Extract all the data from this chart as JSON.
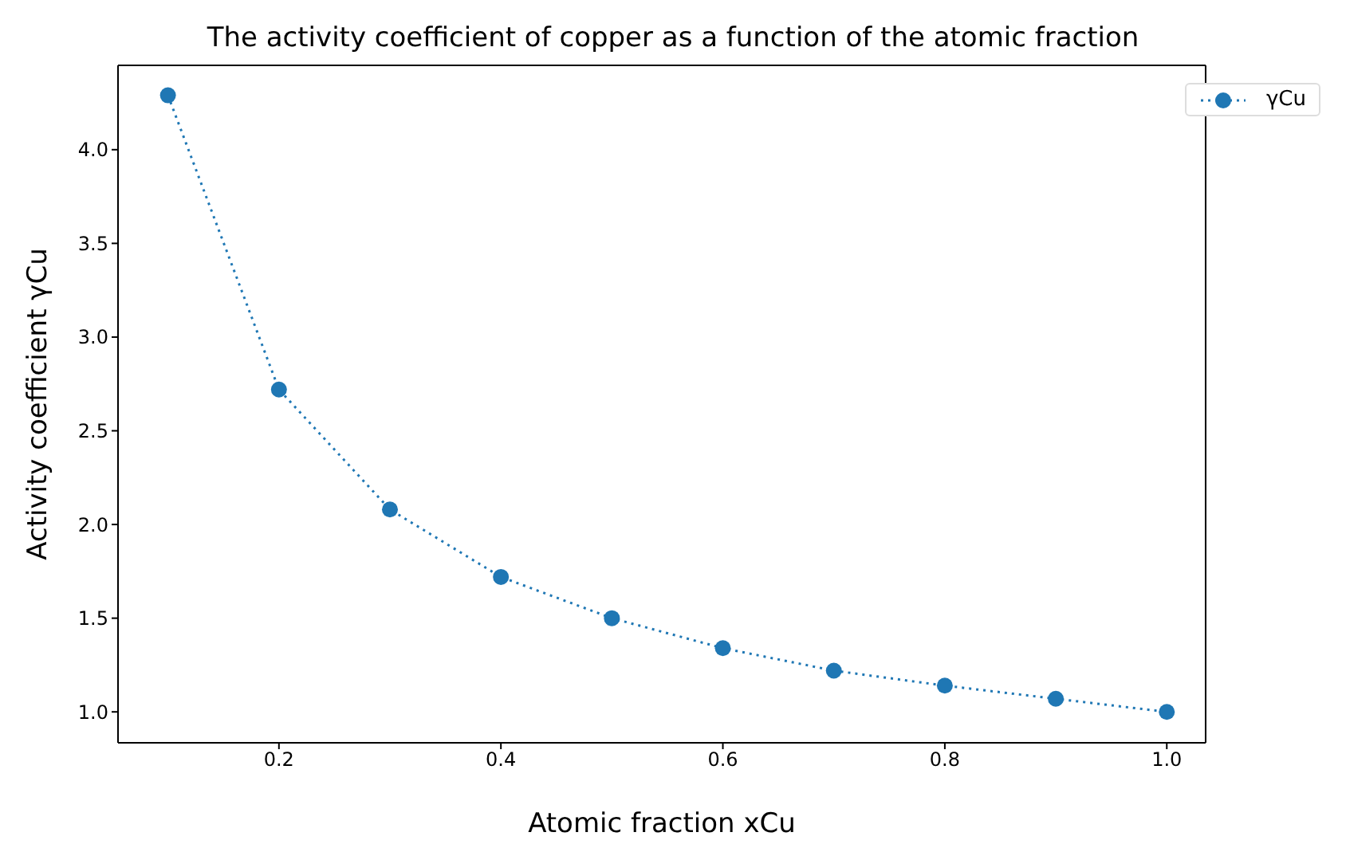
{
  "chart_data": {
    "type": "line",
    "title": "The activity coefficient of copper as a function of the atomic fraction",
    "xlabel": "Atomic fraction xCu",
    "ylabel": "Activity coefficient γCu",
    "x": [
      0.1,
      0.2,
      0.3,
      0.4,
      0.5,
      0.6,
      0.7,
      0.8,
      0.9,
      1.0
    ],
    "series": [
      {
        "name": "γCu",
        "color": "#1f77b4",
        "values": [
          4.29,
          2.72,
          2.08,
          1.72,
          1.5,
          1.34,
          1.22,
          1.14,
          1.07,
          1.0
        ]
      }
    ],
    "xlim": [
      0.055,
      1.035
    ],
    "xticks": [
      {
        "value": 0.2,
        "label": "0.2"
      },
      {
        "value": 0.4,
        "label": "0.4"
      },
      {
        "value": 0.6,
        "label": "0.6"
      },
      {
        "value": 0.8,
        "label": "0.8"
      },
      {
        "value": 1.0,
        "label": "1.0"
      }
    ],
    "ylim": [
      0.835,
      4.45
    ],
    "yticks": [
      {
        "value": 1.0,
        "label": "1.0"
      },
      {
        "value": 1.5,
        "label": "1.5"
      },
      {
        "value": 2.0,
        "label": "2.0"
      },
      {
        "value": 2.5,
        "label": "2.5"
      },
      {
        "value": 3.0,
        "label": "3.0"
      },
      {
        "value": 3.5,
        "label": "3.5"
      },
      {
        "value": 4.0,
        "label": "4.0"
      }
    ],
    "grid": false,
    "legend": "top right",
    "marker": "circle",
    "line_style": "dotted"
  }
}
